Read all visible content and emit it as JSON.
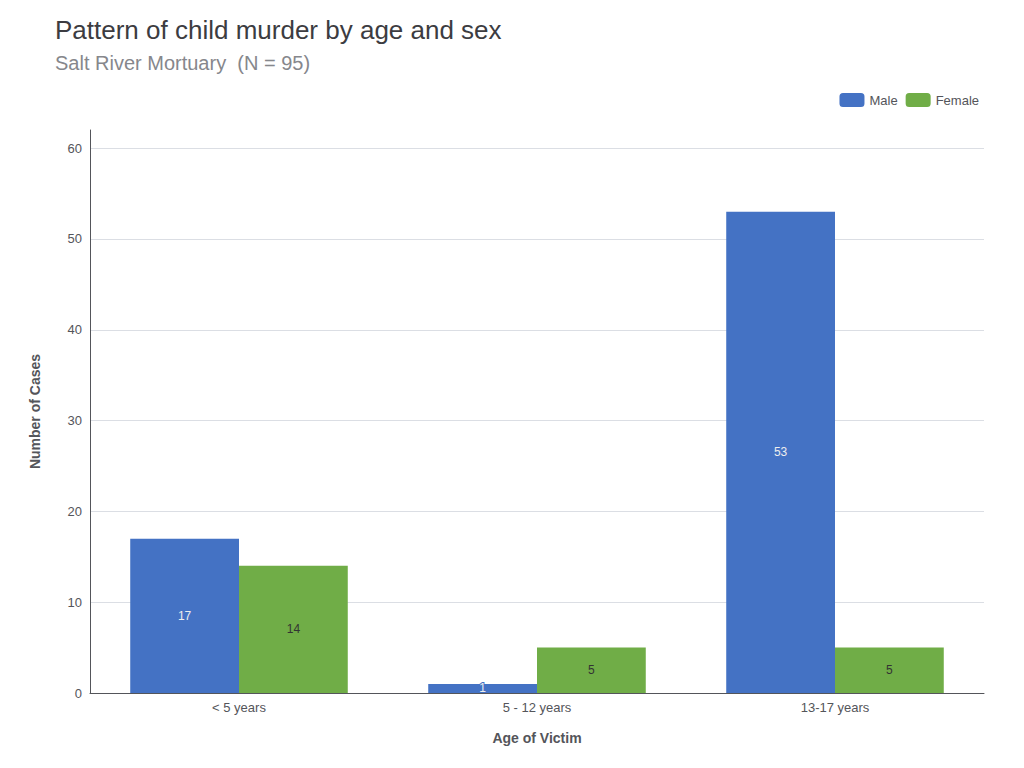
{
  "chart_data": {
    "type": "bar",
    "title": "Pattern of child murder by age and sex",
    "subtitle": "Salt River Mortuary  (N = 95)",
    "categories": [
      "< 5 years",
      "5 - 12 years",
      "13-17 years"
    ],
    "series": [
      {
        "name": "Male",
        "color": "#4472c4",
        "values": [
          17,
          1,
          53
        ]
      },
      {
        "name": "Female",
        "color": "#70ad47",
        "values": [
          14,
          5,
          5
        ]
      }
    ],
    "xlabel": "Age of Victim",
    "ylabel": "Number of Cases",
    "ylim": [
      0,
      62
    ],
    "yticks": [
      0,
      10,
      20,
      30,
      40,
      50,
      60
    ],
    "grid": true,
    "legend": "upper right",
    "data_labels": true
  }
}
